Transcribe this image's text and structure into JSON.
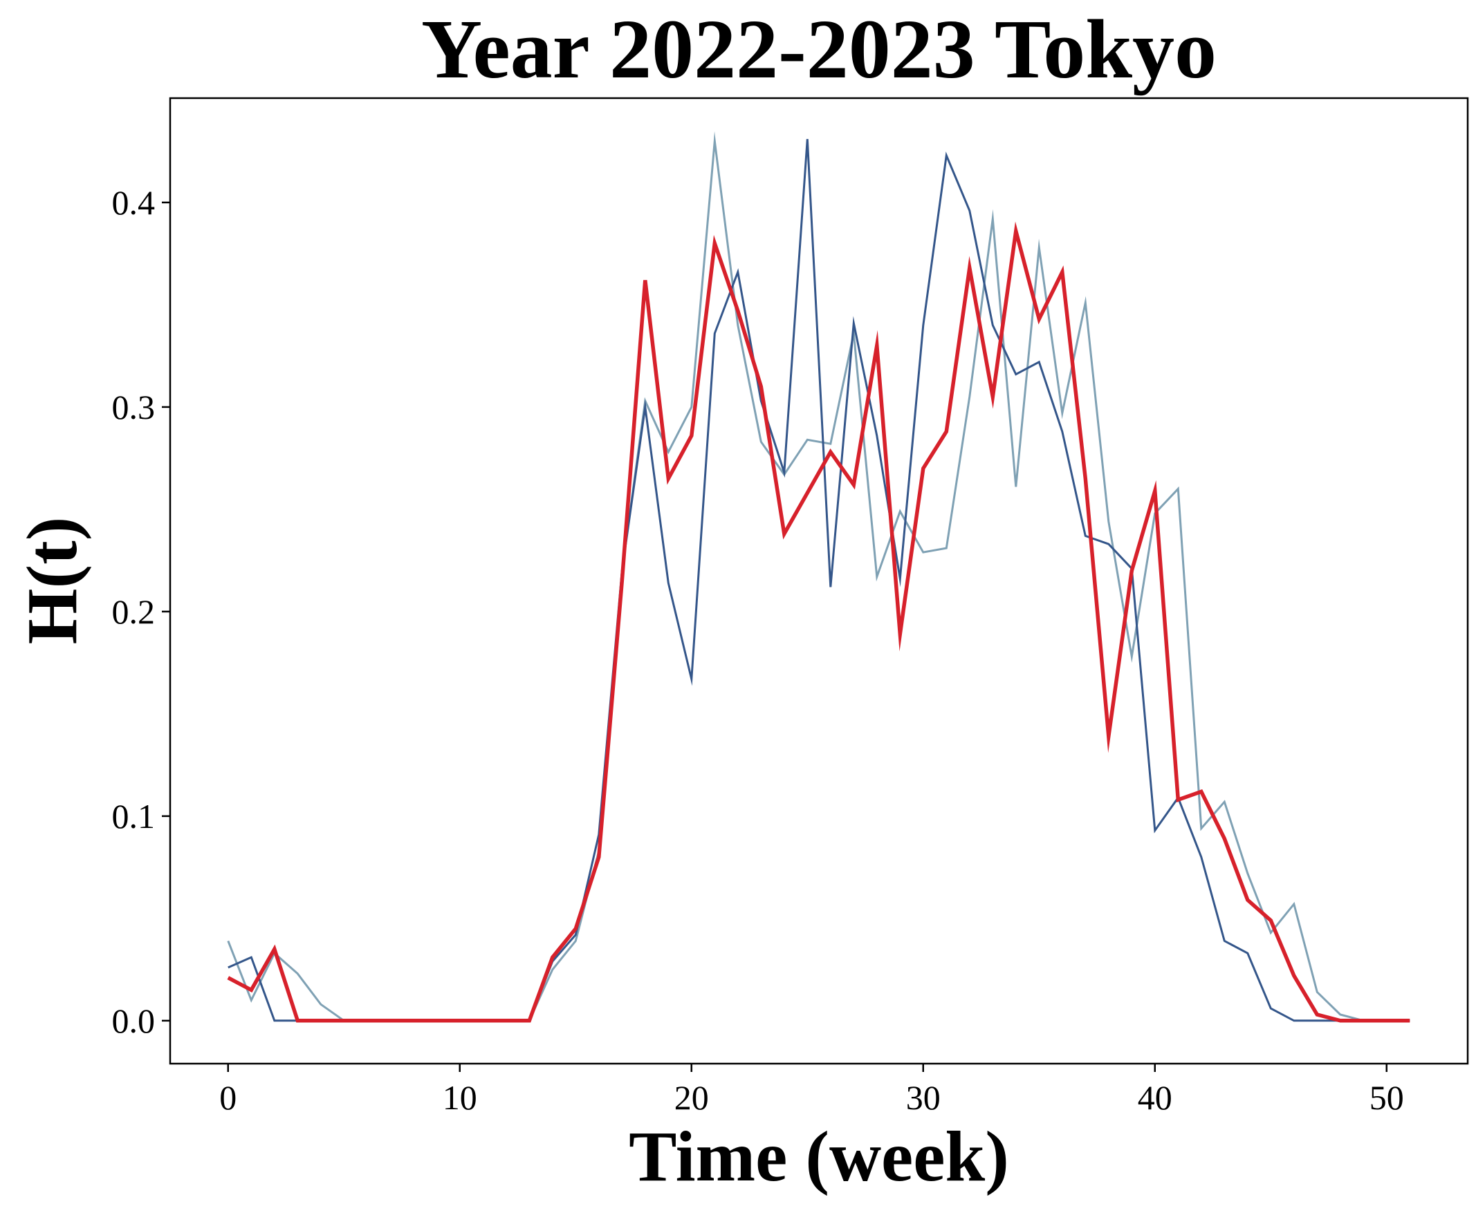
{
  "chart_data": {
    "type": "line",
    "title": "Year 2022-2023 Tokyo",
    "xlabel": "Time (week)",
    "ylabel": "H(t)",
    "xlim": [
      -2.5,
      53.5
    ],
    "ylim": [
      -0.021,
      0.451
    ],
    "xticks": [
      0,
      10,
      20,
      30,
      40,
      50
    ],
    "xtick_labels": [
      "0",
      "10",
      "20",
      "30",
      "40",
      "50"
    ],
    "yticks": [
      0.0,
      0.1,
      0.2,
      0.3,
      0.4
    ],
    "ytick_labels": [
      "0.0",
      "0.1",
      "0.2",
      "0.3",
      "0.4"
    ],
    "grid": false,
    "legend": "none",
    "x": [
      0,
      1,
      2,
      3,
      4,
      5,
      6,
      7,
      8,
      9,
      10,
      11,
      12,
      13,
      14,
      15,
      16,
      17,
      18,
      19,
      20,
      21,
      22,
      23,
      24,
      25,
      26,
      27,
      28,
      29,
      30,
      31,
      32,
      33,
      34,
      35,
      36,
      37,
      38,
      39,
      40,
      41,
      42,
      43,
      44,
      45,
      46,
      47,
      48,
      49,
      50,
      51
    ],
    "series": [
      {
        "color": "#7fa1b4",
        "stroke": "thin",
        "values": [
          0.039,
          0.01,
          0.033,
          0.023,
          0.008,
          0.0,
          0.0,
          0.0,
          0.0,
          0.0,
          0.0,
          0.0,
          0.0,
          0.0,
          0.025,
          0.039,
          0.083,
          0.22,
          0.303,
          0.278,
          0.3,
          0.43,
          0.34,
          0.283,
          0.267,
          0.284,
          0.282,
          0.336,
          0.217,
          0.249,
          0.229,
          0.231,
          0.305,
          0.392,
          0.261,
          0.378,
          0.297,
          0.351,
          0.244,
          0.178,
          0.248,
          0.26,
          0.094,
          0.107,
          0.072,
          0.043,
          0.057,
          0.014,
          0.003,
          0.0,
          0.0,
          0.0
        ]
      },
      {
        "color": "#34568a",
        "stroke": "thin",
        "values": [
          0.026,
          0.031,
          0.0,
          0.0,
          0.0,
          0.0,
          0.0,
          0.0,
          0.0,
          0.0,
          0.0,
          0.0,
          0.0,
          0.0,
          0.029,
          0.042,
          0.091,
          0.22,
          0.3,
          0.214,
          0.167,
          0.336,
          0.366,
          0.303,
          0.268,
          0.431,
          0.212,
          0.341,
          0.286,
          0.216,
          0.34,
          0.423,
          0.396,
          0.34,
          0.316,
          0.322,
          0.288,
          0.237,
          0.233,
          0.221,
          0.093,
          0.109,
          0.08,
          0.039,
          0.033,
          0.006,
          0.0,
          0.0,
          0.0,
          0.0,
          0.0,
          0.0
        ]
      },
      {
        "color": "#d7212b",
        "stroke": "thick",
        "values": [
          0.021,
          0.015,
          0.035,
          0.0,
          0.0,
          0.0,
          0.0,
          0.0,
          0.0,
          0.0,
          0.0,
          0.0,
          0.0,
          0.0,
          0.031,
          0.045,
          0.08,
          0.215,
          0.362,
          0.265,
          0.286,
          0.38,
          0.347,
          0.31,
          0.238,
          0.258,
          0.278,
          0.262,
          0.33,
          0.189,
          0.27,
          0.288,
          0.368,
          0.305,
          0.386,
          0.343,
          0.366,
          0.265,
          0.139,
          0.22,
          0.259,
          0.108,
          0.112,
          0.089,
          0.059,
          0.049,
          0.022,
          0.003,
          0.0,
          0.0,
          0.0,
          0.0
        ]
      }
    ]
  }
}
